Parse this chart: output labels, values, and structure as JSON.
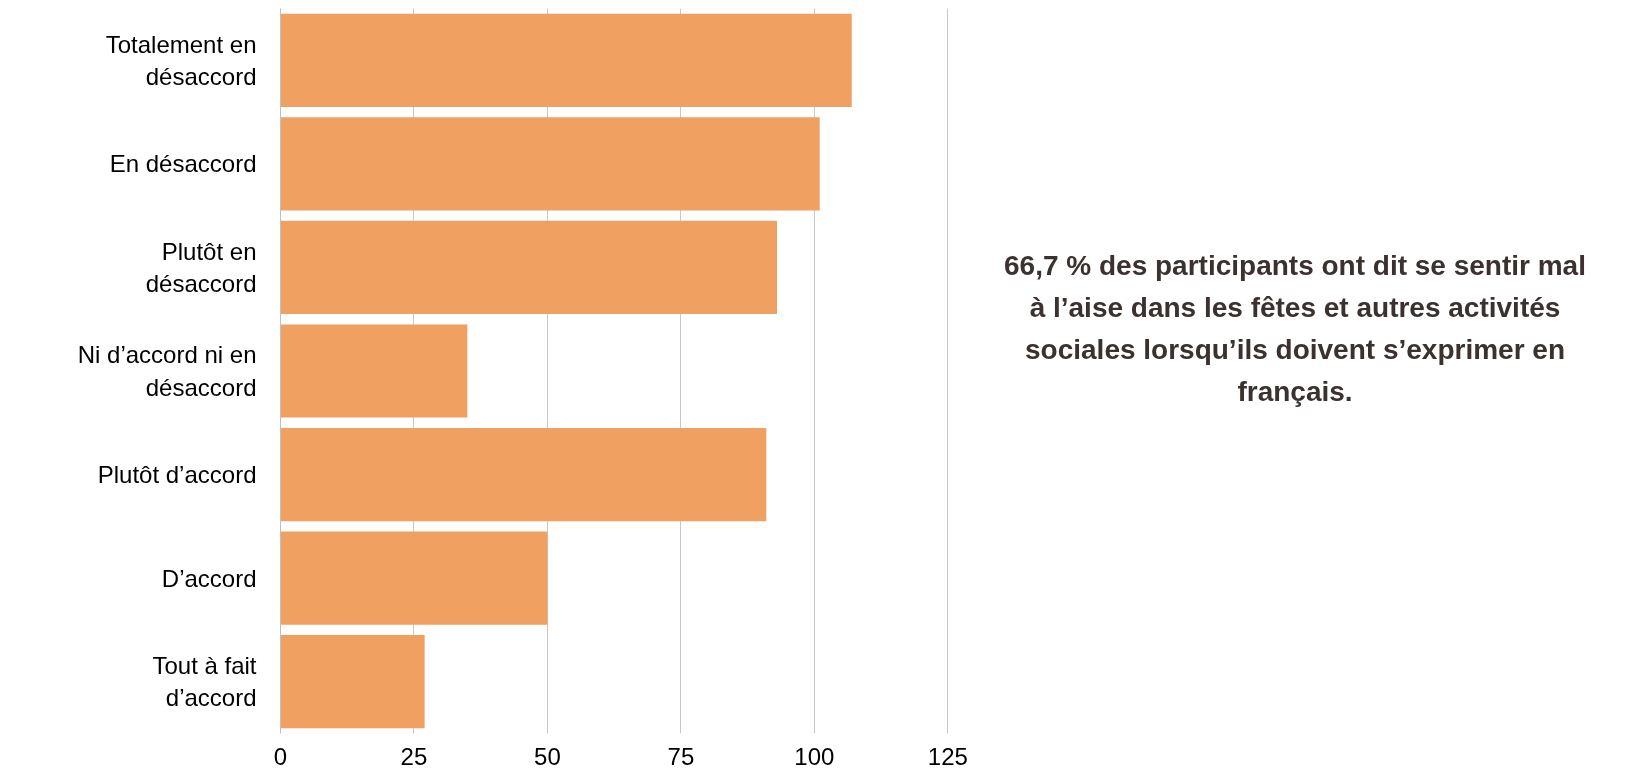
{
  "chart_data": {
    "type": "bar",
    "orientation": "horizontal",
    "categories": [
      "Totalement en désaccord",
      "En désaccord",
      "Plutôt en désaccord",
      "Ni d’accord ni en désaccord",
      "Plutôt d’accord",
      "D’accord",
      "Tout à fait d’accord"
    ],
    "values": [
      107,
      101,
      93,
      35,
      91,
      50,
      27
    ],
    "color": "#f0a060",
    "xlim": [
      0,
      125
    ],
    "xticks": [
      0,
      25,
      50,
      75,
      100,
      125
    ],
    "grid": "x",
    "annotations": [
      "66,7 % des participants ont dit se sentir mal à l’aise dans les fêtes et autres activités sociales lorsqu’ils doivent s’exprimer en français."
    ]
  }
}
